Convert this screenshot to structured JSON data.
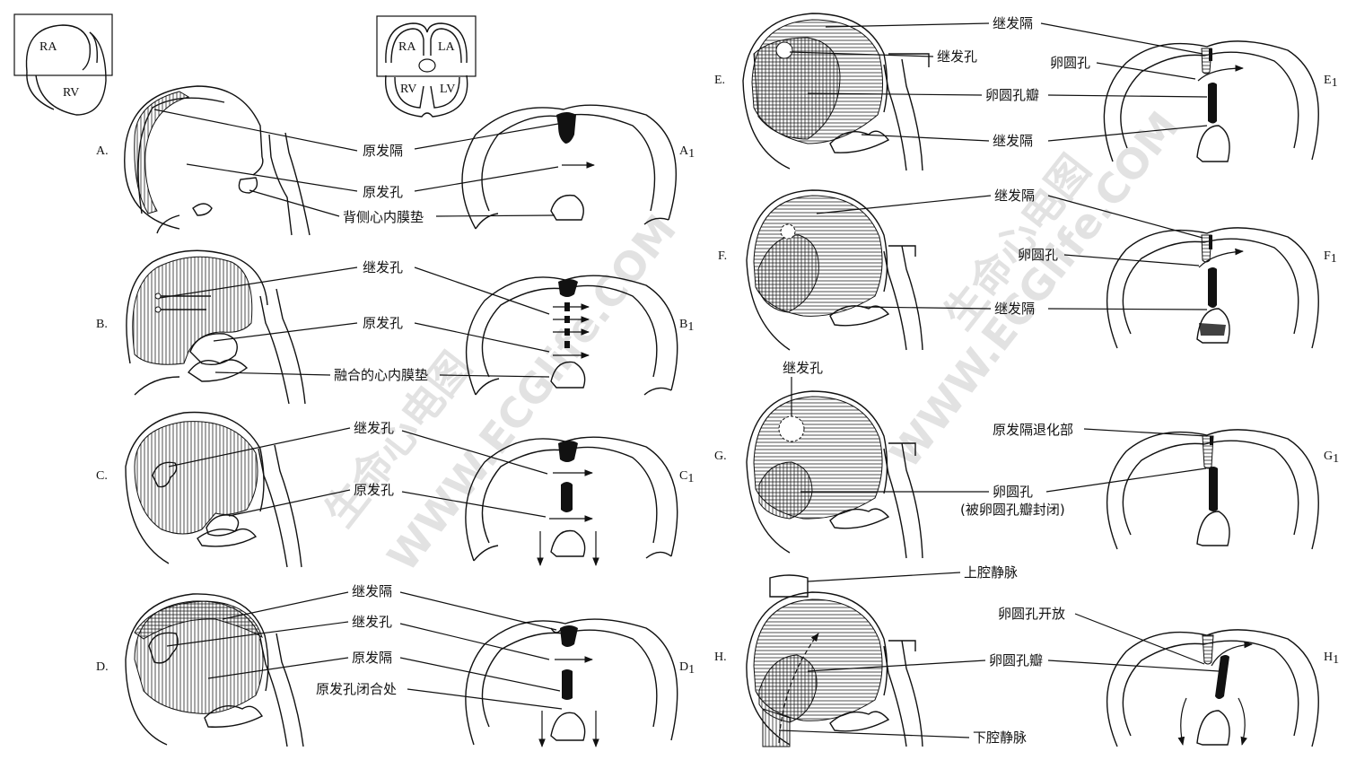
{
  "insets": {
    "left": {
      "ra": "RA",
      "rv": "RV"
    },
    "right": {
      "ra": "RA",
      "la": "LA",
      "rv": "RV",
      "lv": "LV"
    }
  },
  "panels": {
    "A": {
      "label": "A.",
      "label1": "A",
      "sub": "1"
    },
    "B": {
      "label": "B.",
      "label1": "B",
      "sub": "1"
    },
    "C": {
      "label": "C.",
      "label1": "C",
      "sub": "1"
    },
    "D": {
      "label": "D.",
      "label1": "D",
      "sub": "1"
    },
    "E": {
      "label": "E.",
      "label1": "E",
      "sub": "1"
    },
    "F": {
      "label": "F.",
      "label1": "F",
      "sub": "1"
    },
    "G": {
      "label": "G.",
      "label1": "G",
      "sub": "1"
    },
    "H": {
      "label": "H.",
      "label1": "H",
      "sub": "1"
    }
  },
  "labels": {
    "a_septum_primum": "原发隔",
    "a_foramen_primum": "原发孔",
    "a_dorsal_cushion": "背侧心内膜垫",
    "b_foramen_secundum": "继发孔",
    "b_foramen_primum": "原发孔",
    "b_fused_cushion": "融合的心内膜垫",
    "c_foramen_secundum": "继发孔",
    "c_foramen_primum": "原发孔",
    "d_septum_secundum": "继发隔",
    "d_foramen_secundum": "继发孔",
    "d_septum_primum": "原发隔",
    "d_primum_closure": "原发孔闭合处",
    "e_septum_secundum_top": "继发隔",
    "e_foramen_secundum": "继发孔",
    "e_foramen_ovale": "卵圆孔",
    "e_valve": "卵圆孔瓣",
    "e_septum_secundum_bottom": "继发隔",
    "f_septum_secundum_top": "继发隔",
    "f_foramen_ovale": "卵圆孔",
    "f_septum_secundum_bottom": "继发隔",
    "g_foramen_secundum": "继发孔",
    "g_degenerated_primum": "原发隔退化部",
    "g_foramen_ovale": "卵圆孔",
    "g_closed_by_valve": "(被卵圆孔瓣封闭)",
    "h_svc": "上腔静脉",
    "h_foramen_open": "卵圆孔开放",
    "h_valve": "卵圆孔瓣",
    "h_ivc": "下腔静脉"
  },
  "watermarks": {
    "left_cn": "生命心电图",
    "left_url": "WWW.ECGlife.COM",
    "right_cn": "生命心电图",
    "right_url": "WWW.ECGlife.COM"
  }
}
